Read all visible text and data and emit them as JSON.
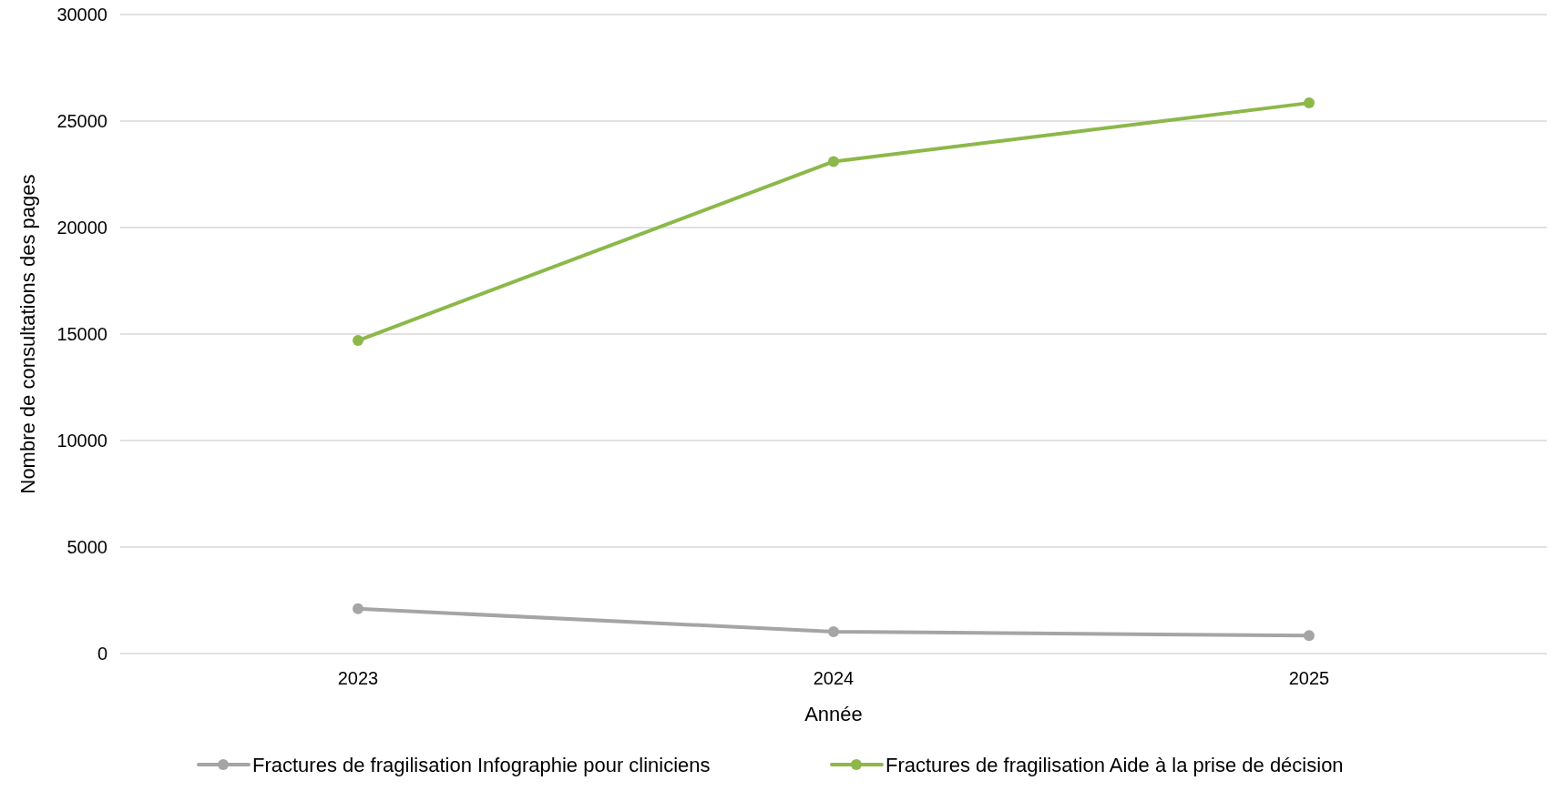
{
  "chart_data": {
    "type": "line",
    "xlabel": "Année",
    "ylabel": "Nombre de consultations des pages",
    "categories": [
      "2023",
      "2024",
      "2025"
    ],
    "series": [
      {
        "name": "Fractures de fragilisation Infographie pour cliniciens",
        "color": "#a5a5a5",
        "values": [
          2100,
          1030,
          840
        ]
      },
      {
        "name": "Fractures de fragilisation Aide à la prise de décision",
        "color": "#8cb84a",
        "values": [
          14700,
          23100,
          25850
        ]
      }
    ],
    "ylim": [
      0,
      30000
    ],
    "yticks": [
      0,
      5000,
      10000,
      15000,
      20000,
      25000,
      30000
    ],
    "grid": "y",
    "legend": "bottom",
    "marker": "circle",
    "line_style": "solid"
  }
}
